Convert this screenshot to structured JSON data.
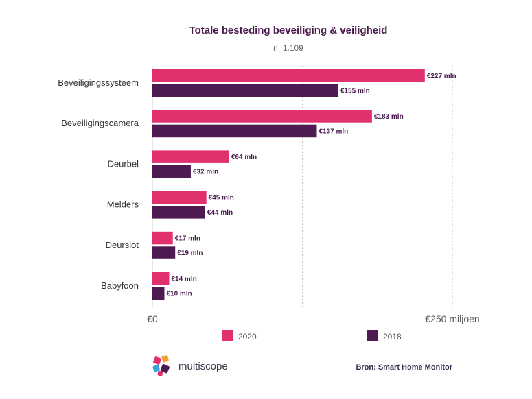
{
  "chart_data": {
    "type": "bar",
    "orientation": "horizontal",
    "title": "Totale besteding beveiliging & veiligheid",
    "subtitle": "n=1.109",
    "categories": [
      "Beveiligingssysteem",
      "Beveiligingscamera",
      "Deurbel",
      "Melders",
      "Deurslot",
      "Babyfoon"
    ],
    "series": [
      {
        "name": "2020",
        "color": "#e0306e",
        "values": [
          227,
          183,
          64,
          45,
          17,
          14
        ],
        "labels": [
          "€227 mln",
          "€183 mln",
          "€64 mln",
          "€45 mln",
          "€17 mln",
          "€14 mln"
        ]
      },
      {
        "name": "2018",
        "color": "#4e1a52",
        "values": [
          155,
          137,
          32,
          44,
          19,
          10
        ],
        "labels": [
          "€155 mln",
          "€137 mln",
          "€32 mln",
          "€44 mln",
          "€19 mln",
          "€10 mln"
        ]
      }
    ],
    "xlim": [
      0,
      250
    ],
    "x_tick_labels": [
      "€0",
      "€250 miljoen"
    ],
    "grid": "dotted vertical",
    "legend_position": "bottom"
  },
  "brand": {
    "name": "multiscope"
  },
  "source": "Bron: Smart Home Monitor"
}
